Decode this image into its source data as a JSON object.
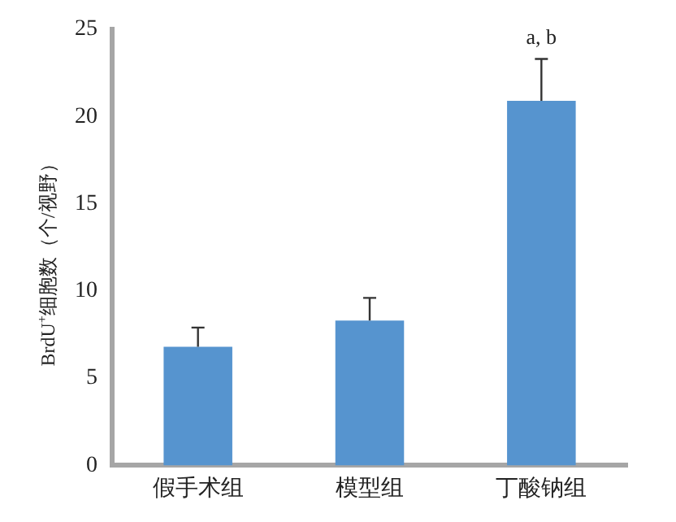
{
  "chart_data": {
    "type": "bar",
    "categories": [
      "假手术组",
      "模型组",
      "丁酸钠组"
    ],
    "values": [
      6.8,
      8.3,
      20.9
    ],
    "errors": [
      [
        6.8,
        7.9
      ],
      [
        8.3,
        9.6
      ],
      [
        20.9,
        23.3
      ]
    ],
    "color": "#5694cf",
    "ylabel": "BrdU$^{+}$细胞数（个/视野）",
    "ylim": [
      0,
      25
    ],
    "yticks": [
      0,
      5,
      10,
      15,
      20,
      25
    ],
    "annotations": [
      "a, b"
    ],
    "grid": false,
    "legend": false
  }
}
